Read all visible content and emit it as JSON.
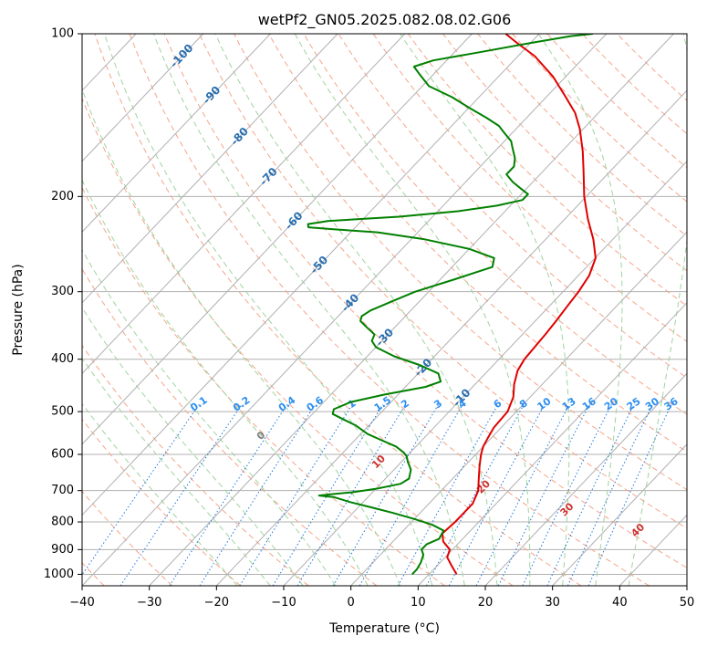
{
  "chart_data": {
    "type": "skew-t",
    "title": "wetPf2_GN05.2025.082.08.02.G06",
    "xlabel": "Temperature (°C)",
    "ylabel": "Pressure (hPa)",
    "xlim": [
      -40,
      50
    ],
    "ylim": [
      1050,
      100
    ],
    "y_scale": "log",
    "grid": true,
    "x_ticks": [
      "−40",
      "−30",
      "−20",
      "−10",
      "0",
      "10",
      "20",
      "30",
      "40",
      "50"
    ],
    "x_tick_values": [
      -40,
      -30,
      -20,
      -10,
      0,
      10,
      20,
      30,
      40,
      50
    ],
    "y_ticks": [
      "100",
      "200",
      "300",
      "400",
      "500",
      "600",
      "700",
      "800",
      "900",
      "1000"
    ],
    "y_tick_values": [
      100,
      200,
      300,
      400,
      500,
      600,
      700,
      800,
      900,
      1000
    ],
    "isotherm_range": [
      -150,
      50
    ],
    "colors": {
      "temperature": "#e00000",
      "dewpoint": "#008000",
      "isotherm": "#b0b0b0",
      "dry_adiabat": "#f5a58a",
      "moist_adiabat": "#9fd49f",
      "mixing_ratio": "#1f77dd",
      "isotherm_label": "#2a6fb0",
      "adiabat_label": "#d03030",
      "mixing_label": "#2b8ef0",
      "zero_label": "#808080"
    },
    "series": [
      {
        "kind": "temperature",
        "points": [
          [
            14.1,
            1000
          ],
          [
            12.2,
            965
          ],
          [
            10.3,
            930
          ],
          [
            9.6,
            900
          ],
          [
            7.5,
            870
          ],
          [
            6.2,
            840
          ],
          [
            6.5,
            800
          ],
          [
            6.5,
            770
          ],
          [
            6.5,
            740
          ],
          [
            5.5,
            700
          ],
          [
            4.1,
            670
          ],
          [
            2.2,
            630
          ],
          [
            0.8,
            600
          ],
          [
            0,
            580
          ],
          [
            -0.5,
            560
          ],
          [
            -1.1,
            535
          ],
          [
            -1.3,
            500
          ],
          [
            -2.5,
            470
          ],
          [
            -4.2,
            445
          ],
          [
            -5.6,
            420
          ],
          [
            -6.2,
            400
          ],
          [
            -6.4,
            380
          ],
          [
            -6.6,
            360
          ],
          [
            -6.9,
            340
          ],
          [
            -7.3,
            320
          ],
          [
            -7.7,
            300
          ],
          [
            -8.4,
            280
          ],
          [
            -9.9,
            260
          ],
          [
            -12.9,
            240
          ],
          [
            -16.6,
            220
          ],
          [
            -20.3,
            200
          ],
          [
            -23.9,
            180
          ],
          [
            -26.9,
            165
          ],
          [
            -30.5,
            150
          ],
          [
            -33.5,
            140
          ],
          [
            -37.5,
            130
          ],
          [
            -41.9,
            120
          ],
          [
            -47.5,
            110
          ],
          [
            -52.0,
            104
          ],
          [
            -55.0,
            100
          ]
        ]
      },
      {
        "kind": "dewpoint",
        "points": [
          [
            7.5,
            1000
          ],
          [
            7.5,
            980
          ],
          [
            7.1,
            950
          ],
          [
            6.4,
            920
          ],
          [
            5.4,
            900
          ],
          [
            5.4,
            880
          ],
          [
            6.5,
            860
          ],
          [
            6.0,
            830
          ],
          [
            3.5,
            810
          ],
          [
            0,
            790
          ],
          [
            -4,
            770
          ],
          [
            -8,
            752
          ],
          [
            -12,
            735
          ],
          [
            -15,
            720
          ],
          [
            -17.5,
            715
          ],
          [
            -16,
            711
          ],
          [
            -13,
            705
          ],
          [
            -10,
            695
          ],
          [
            -7,
            680
          ],
          [
            -6.5,
            665
          ],
          [
            -7.5,
            640
          ],
          [
            -9,
            620
          ],
          [
            -10,
            605
          ],
          [
            -11,
            595
          ],
          [
            -13,
            580
          ],
          [
            -16,
            565
          ],
          [
            -19,
            550
          ],
          [
            -22,
            530
          ],
          [
            -25,
            515
          ],
          [
            -27,
            505
          ],
          [
            -27.5,
            495
          ],
          [
            -26,
            480
          ],
          [
            -22,
            465
          ],
          [
            -17,
            450
          ],
          [
            -15.5,
            440
          ],
          [
            -17,
            425
          ],
          [
            -21,
            410
          ],
          [
            -26,
            395
          ],
          [
            -30,
            380
          ],
          [
            -31.5,
            370
          ],
          [
            -32,
            360
          ],
          [
            -34,
            350
          ],
          [
            -36,
            340
          ],
          [
            -36.5,
            333
          ],
          [
            -36,
            325
          ],
          [
            -34,
            312
          ],
          [
            -32,
            300
          ],
          [
            -28,
            285
          ],
          [
            -24,
            270
          ],
          [
            -25,
            260
          ],
          [
            -30,
            250
          ],
          [
            -38,
            240
          ],
          [
            -46,
            233
          ],
          [
            -53,
            230
          ],
          [
            -57,
            228
          ],
          [
            -57.5,
            225
          ],
          [
            -55,
            222
          ],
          [
            -45,
            218
          ],
          [
            -37,
            213
          ],
          [
            -32,
            208
          ],
          [
            -29,
            203
          ],
          [
            -29,
            198
          ],
          [
            -31,
            193
          ],
          [
            -33,
            188
          ],
          [
            -35,
            182
          ],
          [
            -35,
            176
          ],
          [
            -36,
            170
          ],
          [
            -38,
            162
          ],
          [
            -39,
            158
          ],
          [
            -41,
            153
          ],
          [
            -43,
            148
          ],
          [
            -46,
            143
          ],
          [
            -50,
            137
          ],
          [
            -54,
            131
          ],
          [
            -59,
            125
          ],
          [
            -62,
            119
          ],
          [
            -64,
            115
          ],
          [
            -62,
            112
          ],
          [
            -56,
            108
          ],
          [
            -50,
            104
          ],
          [
            -45,
            101
          ],
          [
            -42,
            100
          ]
        ]
      }
    ],
    "isotherm_labels": [
      {
        "text": "-100",
        "value": -100,
        "p": 110
      },
      {
        "text": "-90",
        "value": -90,
        "p": 130
      },
      {
        "text": "-80",
        "value": -80,
        "p": 155
      },
      {
        "text": "-70",
        "value": -70,
        "p": 184
      },
      {
        "text": "-60",
        "value": -60,
        "p": 222
      },
      {
        "text": "-50",
        "value": -50,
        "p": 268
      },
      {
        "text": "-40",
        "value": -40,
        "p": 315
      },
      {
        "text": "-30",
        "value": -30,
        "p": 365
      },
      {
        "text": "-20",
        "value": -20,
        "p": 415
      },
      {
        "text": "-10",
        "value": -10,
        "p": 472
      }
    ],
    "mixing_ratio_lines": [
      0.1,
      0.2,
      0.4,
      0.6,
      1,
      1.5,
      2,
      3,
      4,
      6,
      8,
      10,
      13,
      16,
      20,
      25,
      30,
      36
    ],
    "mixing_ratio_labels": [
      "0.1",
      "0.2",
      "0.4",
      "0.6",
      "1",
      "1.5",
      "2",
      "3",
      "4",
      "6",
      "8",
      "10",
      "13",
      "16",
      "20",
      "25",
      "30",
      "36"
    ],
    "mixing_ratio_label_p": 485,
    "dry_adiabats": [
      -40,
      -30,
      -20,
      -10,
      0,
      10,
      20,
      30,
      40,
      50,
      60,
      70,
      80,
      90,
      100,
      110,
      120,
      130,
      140,
      150,
      160,
      170,
      180
    ],
    "moist_adiabats": [
      -20,
      -15,
      -10,
      -5,
      0,
      5,
      10,
      15,
      20,
      25,
      30,
      35,
      40
    ],
    "moist_adiabat_labels": [
      {
        "text": "0",
        "value": 0,
        "p": 555
      },
      {
        "text": "10",
        "value": 10,
        "p": 620
      },
      {
        "text": "20",
        "value": 20,
        "p": 690
      },
      {
        "text": "30",
        "value": 30,
        "p": 760
      },
      {
        "text": "40",
        "value": 40,
        "p": 830
      }
    ]
  }
}
